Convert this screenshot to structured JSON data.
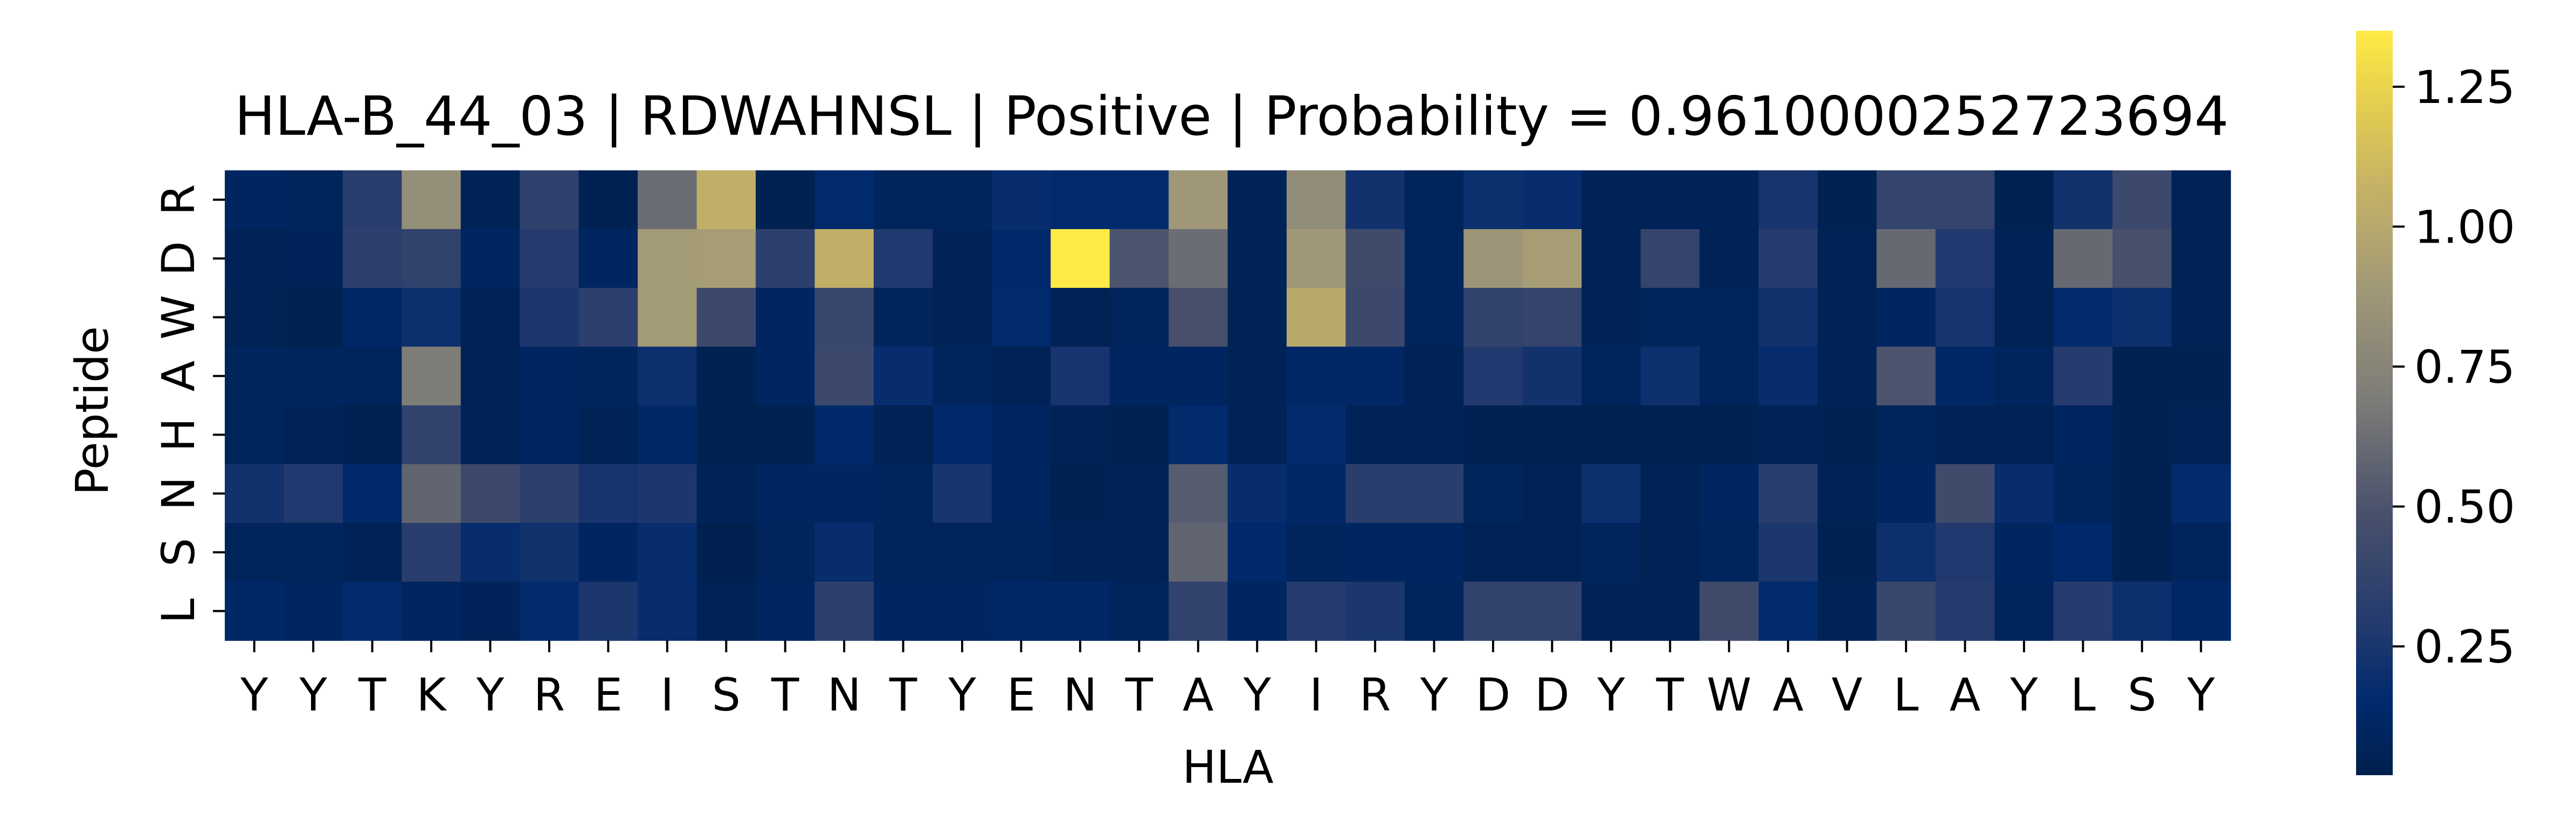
{
  "chart_data": {
    "type": "heatmap",
    "title": "HLA-B_44_03 | RDWAHNSL | Positive | Probability = 0.9610000252723694",
    "xlabel": "HLA",
    "ylabel": "Peptide",
    "x_labels": [
      "Y",
      "Y",
      "T",
      "K",
      "Y",
      "R",
      "E",
      "I",
      "S",
      "T",
      "N",
      "T",
      "Y",
      "E",
      "N",
      "T",
      "A",
      "Y",
      "I",
      "R",
      "Y",
      "D",
      "D",
      "Y",
      "T",
      "W",
      "A",
      "V",
      "L",
      "A",
      "Y",
      "L",
      "S",
      "Y"
    ],
    "y_labels": [
      "R",
      "D",
      "W",
      "A",
      "H",
      "N",
      "S",
      "L"
    ],
    "values": [
      [
        0.1,
        0.08,
        0.32,
        0.82,
        0.06,
        0.35,
        0.04,
        0.62,
        1.05,
        0.04,
        0.16,
        0.08,
        0.08,
        0.18,
        0.16,
        0.16,
        0.88,
        0.06,
        0.8,
        0.22,
        0.08,
        0.2,
        0.18,
        0.06,
        0.06,
        0.06,
        0.24,
        0.04,
        0.38,
        0.38,
        0.04,
        0.22,
        0.42,
        0.06
      ],
      [
        0.06,
        0.07,
        0.34,
        0.36,
        0.1,
        0.3,
        0.1,
        0.9,
        0.92,
        0.34,
        1.05,
        0.28,
        0.06,
        0.14,
        1.35,
        0.5,
        0.62,
        0.06,
        0.88,
        0.44,
        0.08,
        0.86,
        0.92,
        0.06,
        0.38,
        0.05,
        0.3,
        0.05,
        0.6,
        0.28,
        0.06,
        0.6,
        0.48,
        0.06
      ],
      [
        0.05,
        0.04,
        0.12,
        0.2,
        0.06,
        0.26,
        0.34,
        0.9,
        0.42,
        0.1,
        0.4,
        0.08,
        0.06,
        0.16,
        0.05,
        0.08,
        0.48,
        0.06,
        1.0,
        0.42,
        0.08,
        0.36,
        0.38,
        0.06,
        0.08,
        0.08,
        0.22,
        0.05,
        0.1,
        0.24,
        0.05,
        0.16,
        0.2,
        0.06
      ],
      [
        0.08,
        0.08,
        0.08,
        0.7,
        0.06,
        0.1,
        0.08,
        0.2,
        0.04,
        0.1,
        0.42,
        0.18,
        0.08,
        0.06,
        0.24,
        0.1,
        0.1,
        0.06,
        0.12,
        0.12,
        0.06,
        0.28,
        0.22,
        0.08,
        0.2,
        0.08,
        0.18,
        0.06,
        0.5,
        0.12,
        0.08,
        0.3,
        0.04,
        0.04
      ],
      [
        0.08,
        0.06,
        0.04,
        0.36,
        0.06,
        0.1,
        0.06,
        0.12,
        0.04,
        0.04,
        0.14,
        0.05,
        0.14,
        0.1,
        0.06,
        0.04,
        0.16,
        0.06,
        0.16,
        0.06,
        0.06,
        0.04,
        0.04,
        0.04,
        0.04,
        0.04,
        0.06,
        0.04,
        0.08,
        0.05,
        0.05,
        0.1,
        0.04,
        0.05
      ],
      [
        0.22,
        0.28,
        0.14,
        0.58,
        0.42,
        0.34,
        0.24,
        0.26,
        0.06,
        0.1,
        0.1,
        0.08,
        0.24,
        0.1,
        0.04,
        0.06,
        0.54,
        0.18,
        0.12,
        0.32,
        0.32,
        0.08,
        0.06,
        0.2,
        0.06,
        0.1,
        0.32,
        0.06,
        0.1,
        0.44,
        0.18,
        0.08,
        0.04,
        0.16
      ],
      [
        0.08,
        0.08,
        0.06,
        0.32,
        0.18,
        0.22,
        0.1,
        0.18,
        0.03,
        0.08,
        0.18,
        0.08,
        0.08,
        0.08,
        0.06,
        0.06,
        0.58,
        0.14,
        0.08,
        0.1,
        0.1,
        0.06,
        0.06,
        0.08,
        0.05,
        0.08,
        0.26,
        0.04,
        0.2,
        0.28,
        0.1,
        0.14,
        0.04,
        0.08
      ],
      [
        0.12,
        0.1,
        0.16,
        0.1,
        0.07,
        0.16,
        0.26,
        0.18,
        0.06,
        0.1,
        0.34,
        0.1,
        0.1,
        0.12,
        0.12,
        0.08,
        0.36,
        0.1,
        0.3,
        0.26,
        0.08,
        0.36,
        0.36,
        0.06,
        0.06,
        0.44,
        0.16,
        0.06,
        0.4,
        0.3,
        0.08,
        0.3,
        0.2,
        0.12
      ]
    ],
    "vmin": 0.02,
    "vmax": 1.35,
    "colorbar_ticks": [
      "0.25",
      "0.50",
      "0.75",
      "1.00",
      "1.25"
    ],
    "colorbar_tick_values": [
      0.25,
      0.5,
      0.75,
      1.0,
      1.25
    ],
    "colormap": "cividis",
    "colors": {
      "low": "#00204d",
      "mid": "#7c7b78",
      "high": "#ffea46"
    },
    "grid": false,
    "legend": "colorbar-right"
  }
}
